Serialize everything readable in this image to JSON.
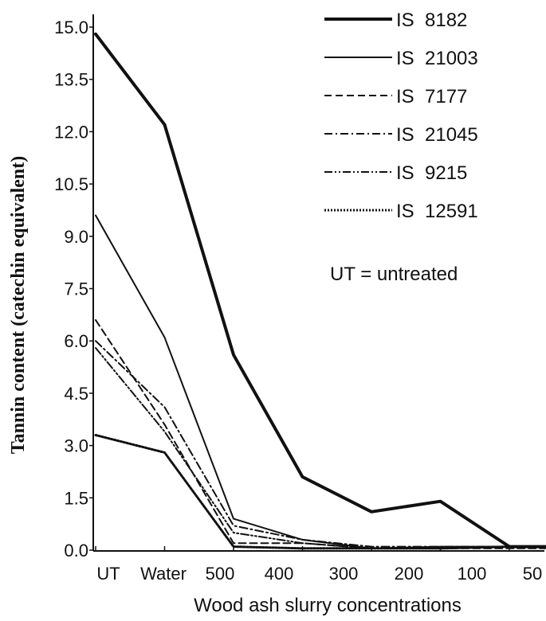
{
  "chart_data": {
    "type": "line",
    "title": "",
    "xlabel": "Wood ash slurry concentrations",
    "ylabel": "Tannin content (catechin equivalent)",
    "categories": [
      "UT",
      "Water",
      "500",
      "400",
      "300",
      "200",
      "100",
      "50"
    ],
    "yticks": [
      "0.0",
      "1.5",
      "3.0",
      "4.5",
      "6.0",
      "7.5",
      "9.0",
      "10.5",
      "12.0",
      "13.5",
      "15.0"
    ],
    "ylim": [
      0,
      15.5
    ],
    "grid": false,
    "legend_position": "top-right",
    "note": "UT = untreated",
    "series": [
      {
        "name": "IS  8182",
        "style": "thick-solid",
        "values": [
          14.8,
          12.2,
          5.6,
          2.1,
          1.1,
          1.4,
          0.1,
          0.1
        ]
      },
      {
        "name": "IS  21003",
        "style": "solid",
        "values": [
          9.6,
          6.1,
          0.9,
          0.3,
          0.05,
          0.1,
          0.1,
          0.1
        ]
      },
      {
        "name": "IS  7177",
        "style": "dashed",
        "values": [
          6.6,
          3.6,
          0.2,
          0.2,
          0.05,
          0.05,
          0.05,
          0.05
        ]
      },
      {
        "name": "IS  21045",
        "style": "dash-dot",
        "values": [
          6.0,
          4.1,
          0.7,
          0.3,
          0.1,
          0.1,
          0.1,
          0.1
        ]
      },
      {
        "name": "IS  9215",
        "style": "dash-dot-dot",
        "values": [
          5.8,
          3.4,
          0.5,
          0.2,
          0.05,
          0.05,
          0.1,
          0.1
        ]
      },
      {
        "name": "IS  12591",
        "style": "dotted",
        "values": [
          3.3,
          2.8,
          0.1,
          0.05,
          0.05,
          0.05,
          0.1,
          0.1
        ]
      }
    ]
  }
}
